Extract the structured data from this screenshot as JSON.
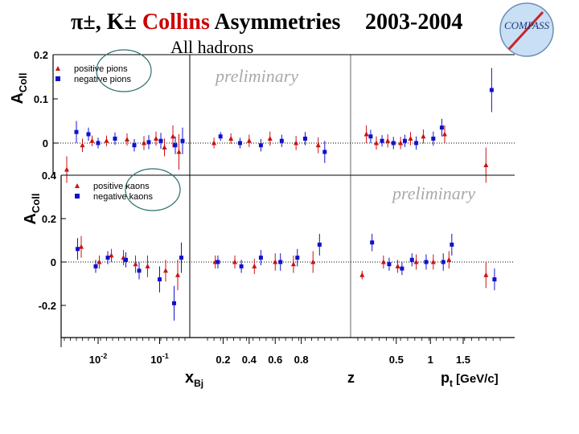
{
  "header": {
    "title_particles": "π±, K±",
    "title_collins": "Collins",
    "title_rest": "Asymmetries",
    "years": "2003-2004",
    "subtitle": "All hadrons",
    "logo_text": "COMPASS"
  },
  "colors": {
    "positive": "#cc1111",
    "negative": "#1111cc",
    "legend_circle": "#2a6f6f",
    "logo_fill": "#c9dff5",
    "logo_needle": "#cc2222"
  },
  "chart_data": [
    {
      "type": "scatter",
      "name": "pions",
      "ylabel": "A",
      "ylabel_sub": "Coll",
      "ylim": [
        -0.09,
        0.22
      ],
      "yticks": [
        {
          "v": 0.2,
          "label": "0.2"
        },
        {
          "v": 0.1,
          "label": "0.1"
        },
        {
          "v": 0,
          "label": "0"
        }
      ],
      "watermark": "preliminary",
      "legend": [
        "positive pions",
        "negative pions"
      ],
      "subplots": [
        {
          "var": "x",
          "positive": [
            {
              "x": 0.2,
              "y": -0.06,
              "e": 0.03
            },
            {
              "x": 1.5,
              "y": -0.005,
              "e": 0.015
            },
            {
              "x": 2.3,
              "y": 0.005,
              "e": 0.012
            },
            {
              "x": 3.5,
              "y": 0.005,
              "e": 0.012
            },
            {
              "x": 5.2,
              "y": 0.008,
              "e": 0.014
            },
            {
              "x": 6.6,
              "y": 0.0,
              "e": 0.016
            },
            {
              "x": 7.6,
              "y": 0.01,
              "e": 0.016
            },
            {
              "x": 8.3,
              "y": -0.01,
              "e": 0.02
            },
            {
              "x": 9.0,
              "y": 0.015,
              "e": 0.025
            },
            {
              "x": 9.5,
              "y": -0.02,
              "e": 0.04
            }
          ],
          "negative": [
            {
              "x": 1.0,
              "y": 0.025,
              "e": 0.025
            },
            {
              "x": 2.0,
              "y": 0.02,
              "e": 0.015
            },
            {
              "x": 2.8,
              "y": 0.0,
              "e": 0.012
            },
            {
              "x": 4.2,
              "y": 0.01,
              "e": 0.014
            },
            {
              "x": 5.8,
              "y": -0.005,
              "e": 0.014
            },
            {
              "x": 7.0,
              "y": 0.002,
              "e": 0.016
            },
            {
              "x": 8.0,
              "y": 0.005,
              "e": 0.018
            },
            {
              "x": 9.2,
              "y": -0.005,
              "e": 0.02
            },
            {
              "x": 9.8,
              "y": 0.005,
              "e": 0.03
            }
          ]
        },
        {
          "var": "z",
          "positive": [
            {
              "x": 0.5,
              "y": 0.0,
              "e": 0.012
            },
            {
              "x": 1.8,
              "y": 0.01,
              "e": 0.012
            },
            {
              "x": 3.2,
              "y": 0.005,
              "e": 0.014
            },
            {
              "x": 4.8,
              "y": 0.01,
              "e": 0.016
            },
            {
              "x": 6.8,
              "y": 0.0,
              "e": 0.016
            },
            {
              "x": 8.5,
              "y": -0.005,
              "e": 0.018
            }
          ],
          "negative": [
            {
              "x": 1.0,
              "y": 0.015,
              "e": 0.01
            },
            {
              "x": 2.5,
              "y": 0.0,
              "e": 0.012
            },
            {
              "x": 4.1,
              "y": -0.005,
              "e": 0.014
            },
            {
              "x": 5.7,
              "y": 0.005,
              "e": 0.014
            },
            {
              "x": 7.5,
              "y": 0.01,
              "e": 0.015
            },
            {
              "x": 9.0,
              "y": -0.02,
              "e": 0.025
            }
          ]
        },
        {
          "var": "pt",
          "positive": [
            {
              "x": 0.6,
              "y": 0.02,
              "e": 0.02
            },
            {
              "x": 1.3,
              "y": 0.0,
              "e": 0.015
            },
            {
              "x": 2.1,
              "y": 0.005,
              "e": 0.015
            },
            {
              "x": 3.0,
              "y": 0.0,
              "e": 0.014
            },
            {
              "x": 3.7,
              "y": 0.01,
              "e": 0.015
            },
            {
              "x": 4.6,
              "y": 0.015,
              "e": 0.016
            },
            {
              "x": 6.1,
              "y": 0.02,
              "e": 0.02
            },
            {
              "x": 9.0,
              "y": -0.05,
              "e": 0.04
            }
          ],
          "negative": [
            {
              "x": 0.9,
              "y": 0.015,
              "e": 0.015
            },
            {
              "x": 1.7,
              "y": 0.005,
              "e": 0.013
            },
            {
              "x": 2.5,
              "y": 0.0,
              "e": 0.014
            },
            {
              "x": 3.3,
              "y": 0.005,
              "e": 0.014
            },
            {
              "x": 4.1,
              "y": 0.0,
              "e": 0.015
            },
            {
              "x": 5.3,
              "y": 0.01,
              "e": 0.016
            },
            {
              "x": 5.9,
              "y": 0.035,
              "e": 0.02
            },
            {
              "x": 9.4,
              "y": 0.12,
              "e": 0.05
            }
          ]
        }
      ]
    },
    {
      "type": "scatter",
      "name": "kaons",
      "ylabel": "A",
      "ylabel_sub": "Coll",
      "ylim": [
        -0.35,
        0.4
      ],
      "yticks": [
        {
          "v": 0.4,
          "label": "0.4"
        },
        {
          "v": 0.2,
          "label": "0.2"
        },
        {
          "v": 0,
          "label": "0"
        },
        {
          "v": -0.2,
          "label": "-0.2"
        }
      ],
      "watermark": "preliminary",
      "legend": [
        "positive kaons",
        "negative kaons"
      ],
      "subplots": [
        {
          "var": "x",
          "positive": [
            {
              "x": 1.4,
              "y": 0.07,
              "e": 0.05
            },
            {
              "x": 2.9,
              "y": 0.0,
              "e": 0.03
            },
            {
              "x": 3.9,
              "y": 0.03,
              "e": 0.03
            },
            {
              "x": 4.9,
              "y": 0.02,
              "e": 0.035
            },
            {
              "x": 5.9,
              "y": -0.01,
              "e": 0.04
            },
            {
              "x": 6.9,
              "y": -0.02,
              "e": 0.05
            },
            {
              "x": 8.4,
              "y": -0.04,
              "e": 0.05
            },
            {
              "x": 9.4,
              "y": -0.06,
              "e": 0.07
            }
          ],
          "negative": [
            {
              "x": 1.1,
              "y": 0.06,
              "e": 0.05
            },
            {
              "x": 2.6,
              "y": -0.02,
              "e": 0.03
            },
            {
              "x": 3.6,
              "y": 0.02,
              "e": 0.03
            },
            {
              "x": 5.1,
              "y": 0.01,
              "e": 0.035
            },
            {
              "x": 6.2,
              "y": -0.04,
              "e": 0.04
            },
            {
              "x": 7.9,
              "y": -0.08,
              "e": 0.06
            },
            {
              "x": 9.1,
              "y": -0.19,
              "e": 0.08
            },
            {
              "x": 9.7,
              "y": 0.02,
              "e": 0.07
            }
          ]
        },
        {
          "var": "z",
          "positive": [
            {
              "x": 0.6,
              "y": 0.0,
              "e": 0.03
            },
            {
              "x": 2.1,
              "y": 0.0,
              "e": 0.03
            },
            {
              "x": 3.6,
              "y": -0.02,
              "e": 0.035
            },
            {
              "x": 5.2,
              "y": 0.0,
              "e": 0.04
            },
            {
              "x": 6.6,
              "y": -0.01,
              "e": 0.04
            },
            {
              "x": 8.1,
              "y": 0.0,
              "e": 0.05
            }
          ],
          "negative": [
            {
              "x": 0.8,
              "y": 0.0,
              "e": 0.03
            },
            {
              "x": 2.6,
              "y": -0.02,
              "e": 0.03
            },
            {
              "x": 4.1,
              "y": 0.02,
              "e": 0.035
            },
            {
              "x": 5.6,
              "y": 0.0,
              "e": 0.04
            },
            {
              "x": 6.9,
              "y": 0.02,
              "e": 0.04
            },
            {
              "x": 8.6,
              "y": 0.08,
              "e": 0.05
            }
          ]
        },
        {
          "var": "pt",
          "positive": [
            {
              "x": 0.3,
              "y": -0.06,
              "e": 0.02
            },
            {
              "x": 1.8,
              "y": 0.0,
              "e": 0.03
            },
            {
              "x": 2.8,
              "y": -0.02,
              "e": 0.03
            },
            {
              "x": 4.1,
              "y": 0.0,
              "e": 0.035
            },
            {
              "x": 5.3,
              "y": 0.0,
              "e": 0.035
            },
            {
              "x": 6.4,
              "y": 0.01,
              "e": 0.04
            },
            {
              "x": 9.0,
              "y": -0.06,
              "e": 0.06
            }
          ],
          "negative": [
            {
              "x": 1.0,
              "y": 0.09,
              "e": 0.04
            },
            {
              "x": 2.2,
              "y": -0.01,
              "e": 0.03
            },
            {
              "x": 3.1,
              "y": -0.03,
              "e": 0.03
            },
            {
              "x": 3.8,
              "y": 0.01,
              "e": 0.03
            },
            {
              "x": 4.8,
              "y": 0.0,
              "e": 0.035
            },
            {
              "x": 6.0,
              "y": 0.0,
              "e": 0.04
            },
            {
              "x": 6.6,
              "y": 0.08,
              "e": 0.05
            },
            {
              "x": 9.6,
              "y": -0.08,
              "e": 0.05
            }
          ]
        }
      ]
    }
  ],
  "x_axes": [
    {
      "var": "x",
      "label": "x",
      "label_sub": "Bj",
      "ticks": [
        {
          "v": 2.8,
          "label": "10",
          "sup": "-2"
        },
        {
          "v": 7.9,
          "label": "10",
          "sup": "-1"
        }
      ]
    },
    {
      "var": "z",
      "label": "z",
      "label_sub": "",
      "ticks": [
        {
          "v": 1.2,
          "label": "0.2"
        },
        {
          "v": 3.2,
          "label": "0.4"
        },
        {
          "v": 5.2,
          "label": "0.6"
        },
        {
          "v": 7.2,
          "label": "0.8"
        }
      ]
    },
    {
      "var": "pt",
      "label": "p",
      "label_sub": "t",
      "label_suffix": " [GeV/c]",
      "ticks": [
        {
          "v": 2.7,
          "label": "0.5"
        },
        {
          "v": 5.1,
          "label": "1"
        },
        {
          "v": 7.4,
          "label": "1.5"
        }
      ]
    }
  ]
}
